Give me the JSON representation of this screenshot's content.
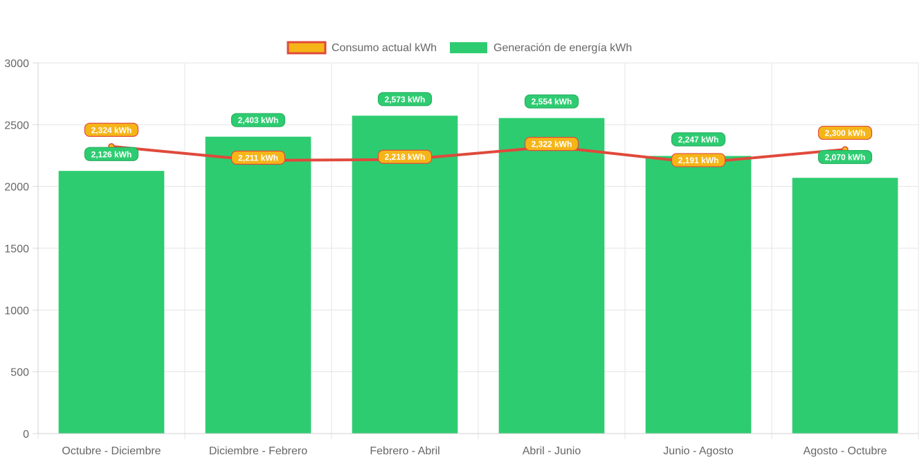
{
  "chart_data": {
    "type": "bar",
    "categories": [
      "Octubre - Diciembre",
      "Diciembre - Febrero",
      "Febrero - Abril",
      "Abril - Junio",
      "Junio - Agosto",
      "Agosto - Octubre"
    ],
    "series": [
      {
        "name": "Consumo actual kWh",
        "type": "line",
        "values": [
          2324,
          2211,
          2218,
          2322,
          2191,
          2300
        ],
        "labels": [
          "2,324 kWh",
          "2,211 kWh",
          "2,218 kWh",
          "2,322 kWh",
          "2,191 kWh",
          "2,300 kWh"
        ],
        "color": "#e0493b",
        "fill_color": "#f5b518"
      },
      {
        "name": "Generación de energía kWh",
        "type": "bar",
        "values": [
          2126,
          2403,
          2573,
          2554,
          2247,
          2070
        ],
        "labels": [
          "2,126 kWh",
          "2,403 kWh",
          "2,573 kWh",
          "2,554 kWh",
          "2,247 kWh",
          "2,070 kWh"
        ],
        "color": "#2ecc71",
        "border_color": "#27ae60"
      }
    ],
    "y_ticks": [
      "0",
      "500",
      "1000",
      "1500",
      "2000",
      "2500",
      "3000"
    ],
    "ylim": [
      0,
      3000
    ],
    "grid": true,
    "legend": "top-center",
    "title": "",
    "xlabel": "",
    "ylabel": ""
  }
}
